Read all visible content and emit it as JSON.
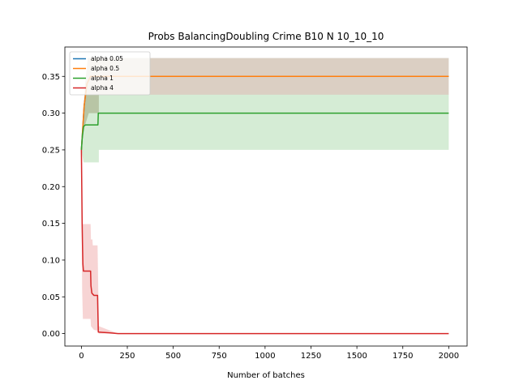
{
  "chart_data": {
    "type": "line",
    "title": "Probs BalancingDoubling Crime B10 N 10_10_10",
    "xlabel": "Number of batches",
    "ylabel": "",
    "xlim": [
      -90,
      2100
    ],
    "ylim": [
      -0.017,
      0.39
    ],
    "xticks": [
      0,
      250,
      500,
      750,
      1000,
      1250,
      1500,
      1750,
      2000
    ],
    "yticks": [
      0.0,
      0.05,
      0.1,
      0.15,
      0.2,
      0.25,
      0.3,
      0.35
    ],
    "xtick_labels": [
      "0",
      "250",
      "500",
      "750",
      "1000",
      "1250",
      "1500",
      "1750",
      "2000"
    ],
    "ytick_labels": [
      "0.00",
      "0.05",
      "0.10",
      "0.15",
      "0.20",
      "0.25",
      "0.30",
      "0.35"
    ],
    "grid": false,
    "legend_position": "top-left",
    "series": [
      {
        "name": "alpha 0.05",
        "color": "#1f77b4",
        "line": [
          [
            0,
            0.25
          ],
          [
            5,
            0.27
          ],
          [
            15,
            0.31
          ],
          [
            30,
            0.34
          ],
          [
            50,
            0.35
          ],
          [
            2000,
            0.35
          ]
        ],
        "band_upper": [
          [
            0,
            0.25
          ],
          [
            10,
            0.3
          ],
          [
            20,
            0.34
          ],
          [
            35,
            0.375
          ],
          [
            2000,
            0.375
          ]
        ],
        "band_lower": [
          [
            0,
            0.25
          ],
          [
            15,
            0.28
          ],
          [
            40,
            0.3
          ],
          [
            95,
            0.3
          ],
          [
            95,
            0.325
          ],
          [
            2000,
            0.325
          ]
        ]
      },
      {
        "name": "alpha 0.5",
        "color": "#ff7f0e",
        "line": [
          [
            0,
            0.25
          ],
          [
            5,
            0.27
          ],
          [
            15,
            0.31
          ],
          [
            30,
            0.34
          ],
          [
            50,
            0.35
          ],
          [
            2000,
            0.35
          ]
        ],
        "band_upper": [
          [
            0,
            0.25
          ],
          [
            10,
            0.3
          ],
          [
            20,
            0.34
          ],
          [
            35,
            0.375
          ],
          [
            2000,
            0.375
          ]
        ],
        "band_lower": [
          [
            0,
            0.25
          ],
          [
            15,
            0.28
          ],
          [
            40,
            0.3
          ],
          [
            95,
            0.3
          ],
          [
            95,
            0.325
          ],
          [
            2000,
            0.325
          ]
        ]
      },
      {
        "name": "alpha 1",
        "color": "#2ca02c",
        "line": [
          [
            0,
            0.25
          ],
          [
            5,
            0.268
          ],
          [
            12,
            0.282
          ],
          [
            22,
            0.284
          ],
          [
            90,
            0.284
          ],
          [
            92,
            0.3
          ],
          [
            2000,
            0.3
          ]
        ],
        "band_upper": [
          [
            0,
            0.25
          ],
          [
            10,
            0.3
          ],
          [
            25,
            0.325
          ],
          [
            2000,
            0.325
          ]
        ],
        "band_lower": [
          [
            0,
            0.25
          ],
          [
            12,
            0.233
          ],
          [
            95,
            0.233
          ],
          [
            95,
            0.25
          ],
          [
            2000,
            0.25
          ]
        ]
      },
      {
        "name": "alpha 4",
        "color": "#d62728",
        "line": [
          [
            0,
            0.25
          ],
          [
            2,
            0.2
          ],
          [
            4,
            0.15
          ],
          [
            6,
            0.12
          ],
          [
            8,
            0.095
          ],
          [
            11,
            0.085
          ],
          [
            50,
            0.085
          ],
          [
            52,
            0.065
          ],
          [
            57,
            0.055
          ],
          [
            68,
            0.052
          ],
          [
            88,
            0.052
          ],
          [
            92,
            0.002
          ],
          [
            150,
            0.001
          ],
          [
            200,
            0.0
          ],
          [
            2000,
            0.0
          ]
        ],
        "band_upper": [
          [
            0,
            0.25
          ],
          [
            4,
            0.17
          ],
          [
            8,
            0.149
          ],
          [
            50,
            0.149
          ],
          [
            52,
            0.128
          ],
          [
            60,
            0.128
          ],
          [
            62,
            0.12
          ],
          [
            88,
            0.12
          ],
          [
            95,
            0.01
          ],
          [
            200,
            0.0
          ],
          [
            2000,
            0.0
          ]
        ],
        "band_lower": [
          [
            0,
            0.25
          ],
          [
            4,
            0.06
          ],
          [
            8,
            0.02
          ],
          [
            50,
            0.02
          ],
          [
            52,
            0.01
          ],
          [
            68,
            0.005
          ],
          [
            88,
            0.004
          ],
          [
            95,
            0.0
          ],
          [
            2000,
            0.0
          ]
        ]
      }
    ]
  }
}
